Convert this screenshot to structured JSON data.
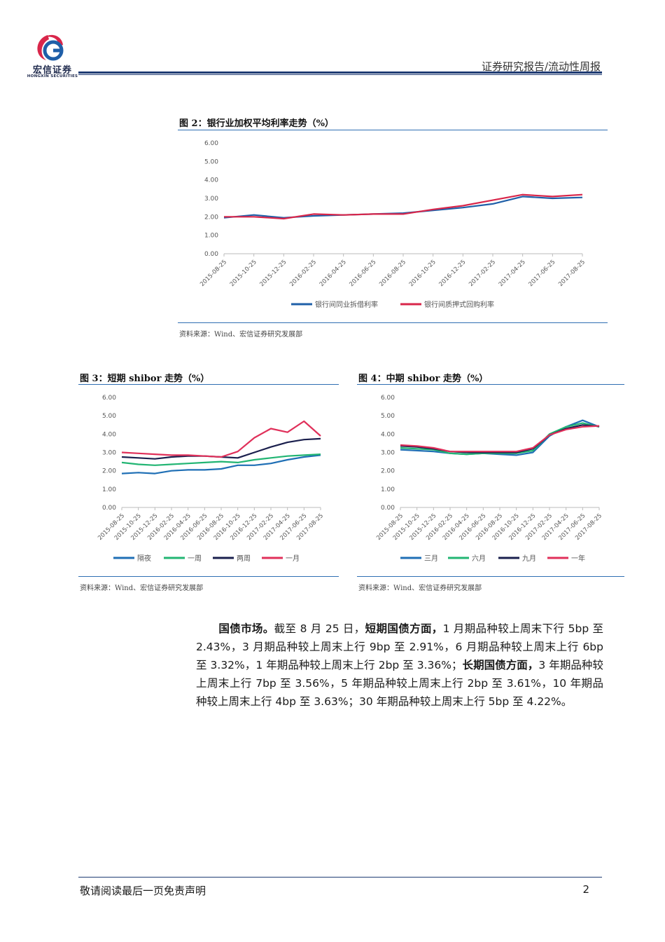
{
  "header": {
    "logo_text": "宏信证券",
    "logo_sub": "HONGXIN SECURITIES",
    "title": "证券研究报告/流动性周报"
  },
  "figures": [
    {
      "title": "图 2：银行业加权平均利率走势（%）",
      "source": "资料来源：Wind、宏信证券研究发展部",
      "legend": [
        "银行间同业拆借利率",
        "银行间质押式回购利率"
      ]
    },
    {
      "title": "图 3：短期 shibor 走势（%）",
      "source": "资料来源：Wind、宏信证券研究发展部",
      "legend": [
        "隔夜",
        "一周",
        "两周",
        "一月"
      ]
    },
    {
      "title": "图 4：中期 shibor 走势（%）",
      "source": "资料来源：Wind、宏信证券研究发展部",
      "legend": [
        "三月",
        "六月",
        "九月",
        "一年"
      ]
    }
  ],
  "chart_data": [
    {
      "type": "line",
      "x": [
        "2015-08-25",
        "2015-10-25",
        "2015-12-25",
        "2016-02-25",
        "2016-04-25",
        "2016-06-25",
        "2016-08-25",
        "2016-10-25",
        "2016-12-25",
        "2017-02-25",
        "2017-04-25",
        "2017-06-25",
        "2017-08-25"
      ],
      "ylim": [
        0,
        6
      ],
      "yticks": [
        "0.00",
        "1.00",
        "2.00",
        "3.00",
        "4.00",
        "5.00",
        "6.00"
      ],
      "series": [
        {
          "name": "银行间同业拆借利率",
          "color": "#1f5fa8",
          "values": [
            1.95,
            2.1,
            1.95,
            2.05,
            2.1,
            2.15,
            2.2,
            2.35,
            2.5,
            2.7,
            3.1,
            3.0,
            3.05
          ]
        },
        {
          "name": "银行间质押式回购利率",
          "color": "#d9264a",
          "values": [
            2.0,
            2.0,
            1.9,
            2.15,
            2.1,
            2.15,
            2.15,
            2.4,
            2.6,
            2.9,
            3.2,
            3.1,
            3.2
          ]
        }
      ]
    },
    {
      "type": "line",
      "x": [
        "2015-08-25",
        "2015-10-25",
        "2015-12-25",
        "2016-02-25",
        "2016-04-25",
        "2016-06-25",
        "2016-08-25",
        "2016-10-25",
        "2016-12-25",
        "2017-02-25",
        "2017-04-25",
        "2017-06-25",
        "2017-08-25"
      ],
      "ylim": [
        0,
        6
      ],
      "yticks": [
        "0.00",
        "1.00",
        "2.00",
        "3.00",
        "4.00",
        "5.00",
        "6.00"
      ],
      "series": [
        {
          "name": "隔夜",
          "color": "#1f6fb5",
          "values": [
            1.85,
            1.9,
            1.85,
            2.0,
            2.05,
            2.05,
            2.1,
            2.3,
            2.3,
            2.4,
            2.6,
            2.75,
            2.85
          ]
        },
        {
          "name": "一周",
          "color": "#22b573",
          "values": [
            2.45,
            2.35,
            2.3,
            2.35,
            2.4,
            2.45,
            2.5,
            2.45,
            2.6,
            2.7,
            2.8,
            2.85,
            2.9
          ]
        },
        {
          "name": "两周",
          "color": "#1a1f4d",
          "values": [
            2.75,
            2.7,
            2.65,
            2.75,
            2.8,
            2.8,
            2.75,
            2.7,
            3.0,
            3.3,
            3.55,
            3.7,
            3.75
          ]
        },
        {
          "name": "一月",
          "color": "#e0305a",
          "values": [
            3.0,
            2.95,
            2.9,
            2.85,
            2.85,
            2.8,
            2.75,
            3.05,
            3.8,
            4.3,
            4.1,
            4.7,
            3.9
          ]
        }
      ]
    },
    {
      "type": "line",
      "x": [
        "2015-08-25",
        "2015-10-25",
        "2015-12-25",
        "2016-02-25",
        "2016-04-25",
        "2016-06-25",
        "2016-08-25",
        "2016-10-25",
        "2016-12-25",
        "2017-02-25",
        "2017-04-25",
        "2017-06-25",
        "2017-08-25"
      ],
      "ylim": [
        0,
        6
      ],
      "yticks": [
        "0.00",
        "1.00",
        "2.00",
        "3.00",
        "4.00",
        "5.00",
        "6.00"
      ],
      "series": [
        {
          "name": "三月",
          "color": "#1f6fb5",
          "values": [
            3.15,
            3.1,
            3.05,
            2.95,
            2.9,
            2.95,
            2.9,
            2.85,
            3.0,
            3.9,
            4.4,
            4.75,
            4.4
          ]
        },
        {
          "name": "六月",
          "color": "#22b573",
          "values": [
            3.25,
            3.2,
            3.15,
            2.95,
            2.9,
            2.95,
            2.95,
            2.95,
            3.1,
            4.0,
            4.4,
            4.6,
            4.4
          ]
        },
        {
          "name": "九月",
          "color": "#1a1f4d",
          "values": [
            3.35,
            3.3,
            3.2,
            3.05,
            3.0,
            3.0,
            3.0,
            3.0,
            3.2,
            3.95,
            4.3,
            4.5,
            4.42
          ]
        },
        {
          "name": "一年",
          "color": "#e0305a",
          "values": [
            3.4,
            3.35,
            3.25,
            3.05,
            3.05,
            3.05,
            3.05,
            3.05,
            3.25,
            3.95,
            4.25,
            4.4,
            4.45
          ]
        }
      ]
    }
  ],
  "paragraph": {
    "lead": "国债市场。",
    "p1": "截至 8 月 25 日，",
    "b1": "短期国债方面，",
    "p2": "1 月期品种较上周末下行 5bp 至 2.43%，3 月期品种较上周末上行 9bp 至 2.91%，6 月期品种较上周末上行 6bp 至 3.32%，1 年期品种较上周末上行 2bp 至 3.36%；",
    "b2": "长期国债方面，",
    "p3": "3 年期品种较上周末上行 7bp 至 3.56%，5 年期品种较上周末上行 2bp 至 3.61%，10 年期品种较上周末上行 4bp 至 3.63%；30 年期品种较上周末上行 5bp 至 4.22%。"
  },
  "footer": {
    "disclaimer": "敬请阅读最后一页免责声明",
    "page": "2"
  }
}
